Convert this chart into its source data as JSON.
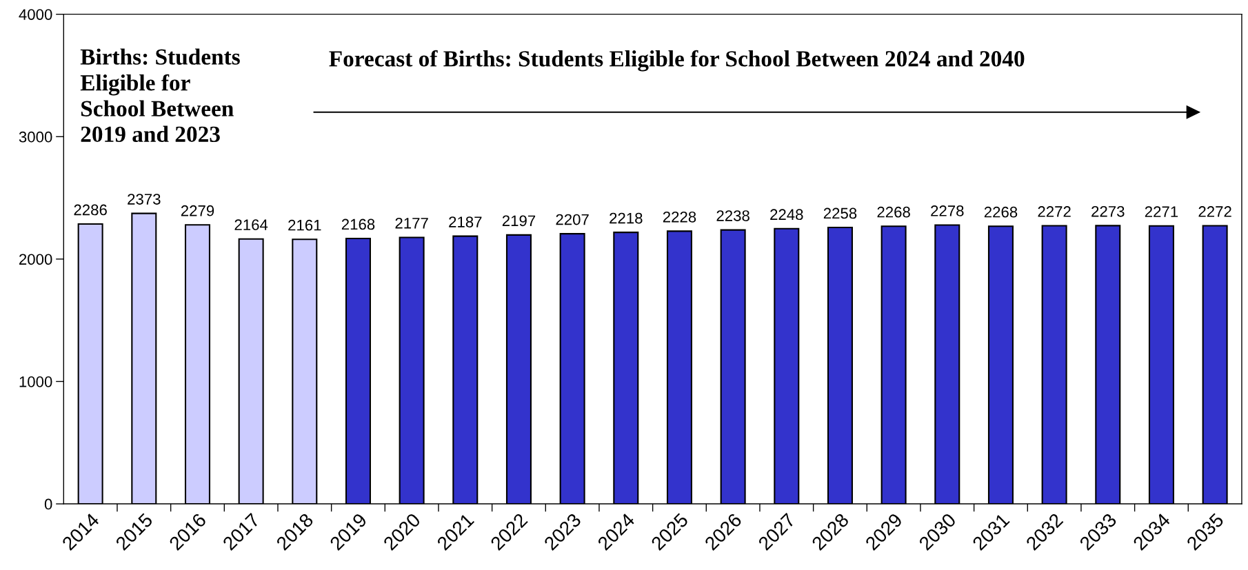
{
  "chart_data": {
    "type": "bar",
    "categories": [
      "2014",
      "2015",
      "2016",
      "2017",
      "2018",
      "2019",
      "2020",
      "2021",
      "2022",
      "2023",
      "2024",
      "2025",
      "2026",
      "2027",
      "2028",
      "2029",
      "2030",
      "2031",
      "2032",
      "2033",
      "2034",
      "2035"
    ],
    "values": [
      2286,
      2373,
      2279,
      2164,
      2161,
      2168,
      2177,
      2187,
      2197,
      2207,
      2218,
      2228,
      2238,
      2248,
      2258,
      2268,
      2278,
      2268,
      2272,
      2273,
      2271,
      2272
    ],
    "colors": [
      "#ccccff",
      "#ccccff",
      "#ccccff",
      "#ccccff",
      "#ccccff",
      "#3333cc",
      "#3333cc",
      "#3333cc",
      "#3333cc",
      "#3333cc",
      "#3333cc",
      "#3333cc",
      "#3333cc",
      "#3333cc",
      "#3333cc",
      "#3333cc",
      "#3333cc",
      "#3333cc",
      "#3333cc",
      "#3333cc",
      "#3333cc",
      "#3333cc"
    ],
    "ylim": [
      0,
      4000
    ],
    "yticks": [
      0,
      1000,
      2000,
      3000,
      4000
    ],
    "data_labels": true,
    "grid": false,
    "legend": false,
    "annotations": [
      "Births: Students\nEligible for\nSchool Between\n2019 and 2023",
      "Forecast of Births: Students Eligible for School Between 2024 and 2040"
    ]
  }
}
